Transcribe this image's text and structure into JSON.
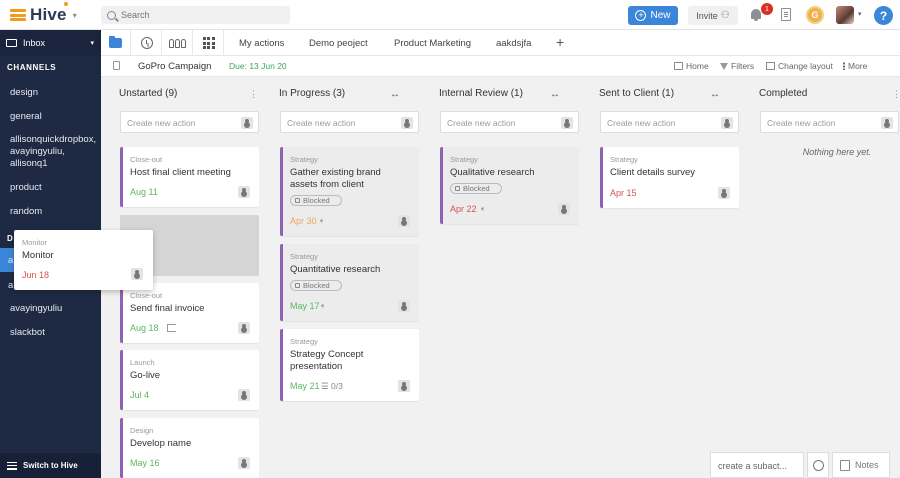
{
  "app": {
    "name": "Hive"
  },
  "search": {
    "placeholder": "Search"
  },
  "header": {
    "new_label": "New",
    "invite_label": "Invite",
    "notification_count": "1",
    "coin_label": "G",
    "help_label": "?"
  },
  "sidebar": {
    "inbox_label": "Inbox",
    "channels_label": "CHANNELS",
    "channels": [
      "design",
      "general",
      "allisonquickdropbox, avayingyuliu, allisonq1",
      "product",
      "random"
    ],
    "dm_label_partial": "D",
    "dm_partial_1": "a",
    "dm_partial_2": "a",
    "dms": [
      "avayingyuliu",
      "slackbot"
    ],
    "switch_label": "Switch to Hive"
  },
  "views": {
    "tabs": [
      "My actions",
      "Demo peoject",
      "Product Marketing",
      "aakdsjfa"
    ],
    "add": "+"
  },
  "project": {
    "title": "GoPro Campaign",
    "due": "Due: 13 Jun 20",
    "home": "Home",
    "filters": "Filters",
    "change_layout": "Change layout",
    "more": "More"
  },
  "board": {
    "create_placeholder": "Create new action",
    "arrows": "↔",
    "menu": "⋮",
    "blocked_label": "Blocked",
    "columns": [
      {
        "title": "Unstarted (9)",
        "cards": [
          {
            "category": "Close-out",
            "title": "Host final client meeting",
            "date": "Aug 11"
          },
          {
            "category": "Close-out",
            "title": "Send final invoice",
            "date": "Aug 18"
          },
          {
            "category": "Launch",
            "title": "Go-live",
            "date": "Jul 4"
          },
          {
            "category": "Design",
            "title": "Develop name",
            "date": "May 16"
          }
        ]
      },
      {
        "title": "In Progress (3)",
        "cards": [
          {
            "category": "Strategy",
            "title": "Gather existing brand assets from client",
            "date": "Apr 30"
          },
          {
            "category": "Strategy",
            "title": "Quantitative research",
            "date": "May 17"
          },
          {
            "category": "Strategy",
            "title": "Strategy Concept presentation",
            "date": "May 21",
            "checklist": "0/3"
          }
        ]
      },
      {
        "title": "Internal Review (1)",
        "cards": [
          {
            "category": "Strategy",
            "title": "Qualitative research",
            "date": "Apr 22"
          }
        ]
      },
      {
        "title": "Sent to Client (1)",
        "cards": [
          {
            "category": "Strategy",
            "title": "Client details survey",
            "date": "Apr 15"
          }
        ]
      },
      {
        "title": "Completed",
        "empty_text": "Nothing here yet."
      }
    ]
  },
  "drag_card": {
    "category": "Monitor",
    "title": "Monitor",
    "date": "Jun 18"
  },
  "footer": {
    "subaction_placeholder": "create a subact...",
    "notes_label": "Notes"
  }
}
